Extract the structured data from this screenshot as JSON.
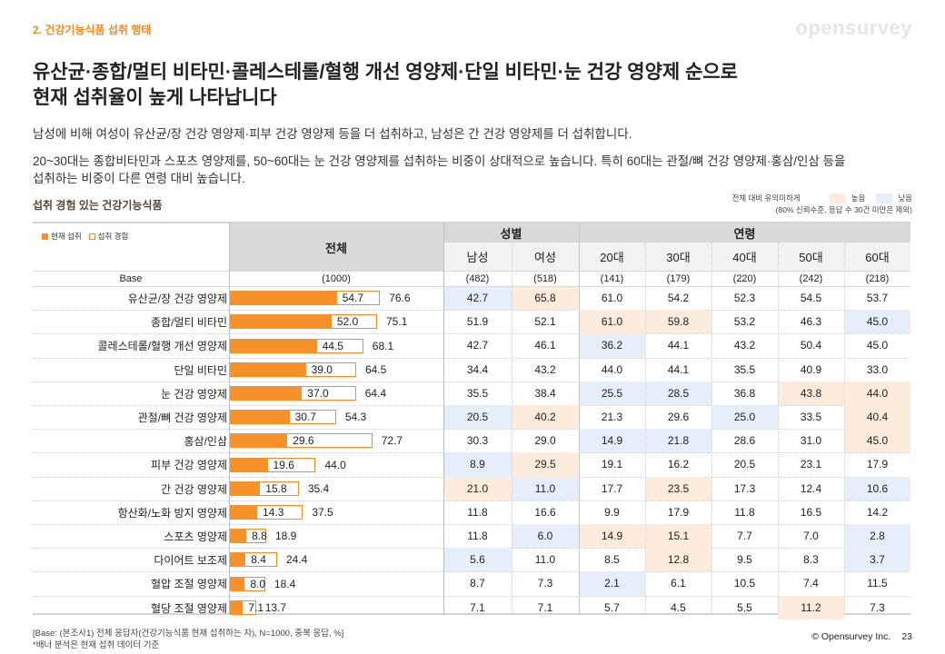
{
  "header": {
    "section": "2. 건강기능식품 섭취 행태",
    "logo": "opensurvey",
    "title_line1": "유산균·종합/멀티 비타민·콜레스테롤/혈행 개선 영양제·단일 비타민·눈 건강 영양제 순으로",
    "title_line2": "현재 섭취율이 높게 나타납니다"
  },
  "body": {
    "paragraph1": "남성에 비해 여성이 유산균/장 건강 영양제·피부 건강 영양제 등을 더 섭취하고, 남성은 간 건강 영양제를 더 섭취합니다.",
    "paragraph2_line1": "20~30대는 종합비타민과 스포츠 영양제를, 50~60대는 눈 건강 영양제를 섭취하는 비중이 상대적으로 높습니다. 특히 60대는 관절/뼈 건강 영양제·홍삼/인삼 등을",
    "paragraph2_line2": "섭취하는 비중이 다른 연령 대비 높습니다."
  },
  "chart_heading": "섭취 경험 있는 건강기능식품",
  "significance_legend": {
    "label": "전체 대비 유의미하게",
    "high": "높음",
    "low": "낮음",
    "note": "(80% 신뢰수준, 응답 수 30건 미만은 제외)",
    "high_color": "#fdebdc",
    "low_color": "#e6eefc"
  },
  "chart_legend": {
    "current": "현재 섭취",
    "experience": "섭취 경험",
    "current_color": "#f7922a",
    "experience_color": "#f28c28"
  },
  "table_header": {
    "total": "전체",
    "gender_group": "성별",
    "age_group": "연령",
    "columns": [
      "남성",
      "여성",
      "20대",
      "30대",
      "40대",
      "50대",
      "60대"
    ],
    "base_label": "Base",
    "base_total": "(1000)",
    "base_values": [
      "(482)",
      "(518)",
      "(141)",
      "(179)",
      "(220)",
      "(242)",
      "(218)"
    ]
  },
  "chart_data": {
    "type": "bar",
    "title": "섭취 경험 있는 건강기능식품",
    "xlabel": "",
    "ylabel": "",
    "unit": "%",
    "xlim": [
      0,
      100
    ],
    "categories": [
      "유산균/장 건강 영양제",
      "종합/멀티 비타민",
      "콜레스테롤/혈행 개선 영양제",
      "단일 비타민",
      "눈 건강 영양제",
      "관절/뼈 건강 영양제",
      "홍삼/인삼",
      "피부 건강 영양제",
      "간 건강 영양제",
      "항산화/노화 방지 영양제",
      "스포츠 영양제",
      "다이어트 보조제",
      "혈압 조절 영양제",
      "혈당 조절 영양제"
    ],
    "series": [
      {
        "name": "현재 섭취",
        "values": [
          54.7,
          52.0,
          44.5,
          39.0,
          37.0,
          30.7,
          29.6,
          19.6,
          15.8,
          14.3,
          8.8,
          8.4,
          8.0,
          7.1
        ]
      },
      {
        "name": "섭취 경험",
        "values": [
          76.6,
          75.1,
          68.1,
          64.5,
          64.4,
          54.3,
          72.7,
          44.0,
          35.4,
          37.5,
          18.9,
          24.4,
          18.4,
          13.7
        ]
      }
    ],
    "table": {
      "columns": [
        "남성",
        "여성",
        "20대",
        "30대",
        "40대",
        "50대",
        "60대"
      ],
      "rows": [
        [
          "42.7",
          "65.8",
          "61.0",
          "54.2",
          "52.3",
          "54.5",
          "53.7"
        ],
        [
          "51.9",
          "52.1",
          "61.0",
          "59.8",
          "53.2",
          "46.3",
          "45.0"
        ],
        [
          "42.7",
          "46.1",
          "36.2",
          "44.1",
          "43.2",
          "50.4",
          "45.0"
        ],
        [
          "34.4",
          "43.2",
          "44.0",
          "44.1",
          "35.5",
          "40.9",
          "33.0"
        ],
        [
          "35.5",
          "38.4",
          "25.5",
          "28.5",
          "36.8",
          "43.8",
          "44.0"
        ],
        [
          "20.5",
          "40.2",
          "21.3",
          "29.6",
          "25.0",
          "33.5",
          "40.4"
        ],
        [
          "30.3",
          "29.0",
          "14.9",
          "21.8",
          "28.6",
          "31.0",
          "45.0"
        ],
        [
          "8.9",
          "29.5",
          "19.1",
          "16.2",
          "20.5",
          "23.1",
          "17.9"
        ],
        [
          "21.0",
          "11.0",
          "17.7",
          "23.5",
          "17.3",
          "12.4",
          "10.6"
        ],
        [
          "11.8",
          "16.6",
          "9.9",
          "17.9",
          "11.8",
          "16.5",
          "14.2"
        ],
        [
          "11.8",
          "6.0",
          "14.9",
          "15.1",
          "7.7",
          "7.0",
          "2.8"
        ],
        [
          "5.6",
          "11.0",
          "8.5",
          "12.8",
          "9.5",
          "8.3",
          "3.7"
        ],
        [
          "8.7",
          "7.3",
          "2.1",
          "6.1",
          "10.5",
          "7.4",
          "11.5"
        ],
        [
          "7.1",
          "7.1",
          "5.7",
          "4.5",
          "5.5",
          "11.2",
          "7.3"
        ]
      ],
      "significance": [
        [
          "L",
          "H",
          "",
          "",
          "",
          "",
          ""
        ],
        [
          "",
          "",
          "H",
          "H",
          "",
          "",
          "L"
        ],
        [
          "",
          "",
          "L",
          "",
          "",
          "",
          ""
        ],
        [
          "",
          "",
          "",
          "",
          "",
          "",
          ""
        ],
        [
          "",
          "",
          "L",
          "L",
          "",
          "H",
          "H"
        ],
        [
          "L",
          "H",
          "",
          "",
          "L",
          "",
          "H"
        ],
        [
          "",
          "",
          "L",
          "L",
          "",
          "",
          "H"
        ],
        [
          "L",
          "H",
          "",
          "",
          "",
          "",
          ""
        ],
        [
          "H",
          "L",
          "",
          "H",
          "",
          "",
          "L"
        ],
        [
          "",
          "",
          "",
          "",
          "",
          "",
          ""
        ],
        [
          "",
          "L",
          "H",
          "H",
          "",
          "",
          "L"
        ],
        [
          "L",
          "",
          "",
          "H",
          "",
          "",
          "L"
        ],
        [
          "",
          "",
          "L",
          "",
          "",
          "",
          ""
        ],
        [
          "",
          "",
          "",
          "",
          "",
          "H",
          ""
        ]
      ]
    }
  },
  "footer": {
    "base_note": "[Base: (본조사1) 전체 응답자(건강기능식품 현재 섭취하는 자), N=1000, 중복 응답, %]",
    "banner_note": "*배너 분석은 현재 섭취 데이터 기준",
    "copyright": "© Opensurvey Inc.",
    "page": "23"
  }
}
